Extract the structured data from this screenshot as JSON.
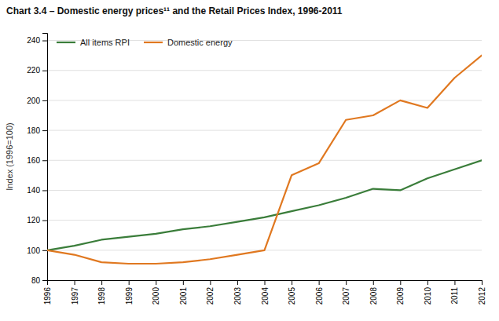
{
  "chart_data": {
    "type": "line",
    "title": "Chart 3.4 – Domestic energy prices¹¹ and the Retail Prices Index, 1996-2011",
    "ylabel": "Index (1996=100)",
    "x": [
      1996,
      1997,
      1998,
      1999,
      2000,
      2001,
      2002,
      2003,
      2004,
      2005,
      2006,
      2007,
      2008,
      2009,
      2010,
      2011,
      2012
    ],
    "series": [
      {
        "name": "All items RPI",
        "color": "#3a7d3a",
        "values": [
          100,
          103,
          107,
          109,
          111,
          114,
          116,
          119,
          122,
          126,
          130,
          135,
          141,
          140,
          148,
          154,
          160
        ]
      },
      {
        "name": "Domestic energy",
        "color": "#e07820",
        "values": [
          100,
          97,
          92,
          91,
          91,
          92,
          94,
          97,
          100,
          150,
          158,
          187,
          190,
          200,
          195,
          215,
          230
        ]
      }
    ],
    "xlim": [
      1996,
      2012
    ],
    "xticks": [
      1996,
      1997,
      1998,
      1999,
      2000,
      2001,
      2002,
      2003,
      2004,
      2005,
      2006,
      2007,
      2008,
      2009,
      2010,
      2011,
      2012
    ],
    "ylim": [
      80,
      245
    ],
    "yticks": [
      80,
      100,
      120,
      140,
      160,
      180,
      200,
      220,
      240
    ],
    "grid": true,
    "legend": "upper left"
  }
}
